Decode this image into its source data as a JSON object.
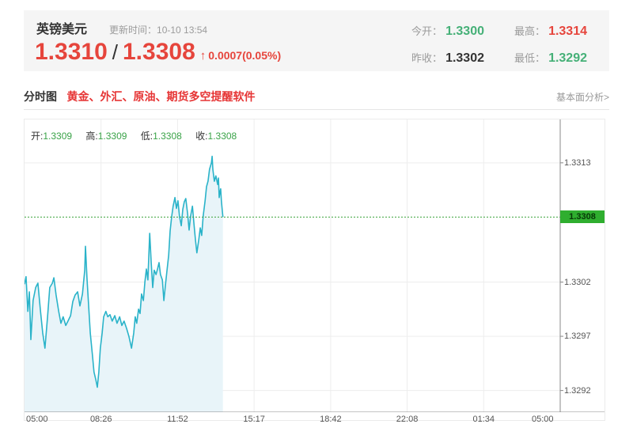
{
  "header": {
    "symbol_name": "英镑美元",
    "update_label": "更新时间：",
    "update_time": "10-10 13:54",
    "bid": "1.3310",
    "separator": "/",
    "ask": "1.3308",
    "arrow": "↑",
    "change": "0.0007(0.05%)",
    "stats": [
      {
        "label": "今开：",
        "value": "1.3300",
        "color": "#45b077"
      },
      {
        "label": "最高：",
        "value": "1.3314",
        "color": "#e6453c"
      },
      {
        "label": "昨收：",
        "value": "1.3302",
        "color": "#333333"
      },
      {
        "label": "最低：",
        "value": "1.3292",
        "color": "#45b077"
      }
    ]
  },
  "section": {
    "title": "分时图",
    "promo": "黄金、外汇、原油、期货多空提醒软件",
    "right_link": "基本面分析>"
  },
  "chart_data": {
    "type": "area",
    "title": "英镑美元分时图",
    "legend": [
      {
        "label": "开:",
        "value": "1.3309"
      },
      {
        "label": "高:",
        "value": "1.3309"
      },
      {
        "label": "低:",
        "value": "1.3308"
      },
      {
        "label": "收:",
        "value": "1.3308"
      }
    ],
    "x_ticks": [
      "05:00",
      "08:26",
      "11:52",
      "15:17",
      "18:42",
      "22:08",
      "01:34",
      "05:00"
    ],
    "x_total_minutes": 1442,
    "y_ticks": [
      1.3313,
      1.3302,
      1.3297,
      1.3292
    ],
    "ylim": [
      1.329,
      1.3317
    ],
    "grid": true,
    "legend_position": "top-left",
    "current_price": 1.3308,
    "current_price_label": "1.3308",
    "line_color": "#2ab3c9",
    "fill_color": "#e8f4f9",
    "current_line_color": "#3aa33a",
    "tag_bg": "#2fae2f",
    "axis_color": "#8a8a8a",
    "grid_color": "#ededed",
    "series": [
      [
        0,
        1.33018
      ],
      [
        4,
        1.33025
      ],
      [
        9,
        1.32993
      ],
      [
        13,
        1.33011
      ],
      [
        17,
        1.32967
      ],
      [
        23,
        1.33003
      ],
      [
        30,
        1.33015
      ],
      [
        36,
        1.33019
      ],
      [
        43,
        1.32993
      ],
      [
        49,
        1.32973
      ],
      [
        55,
        1.32959
      ],
      [
        62,
        1.32988
      ],
      [
        68,
        1.33015
      ],
      [
        75,
        1.33019
      ],
      [
        79,
        1.33024
      ],
      [
        85,
        1.33008
      ],
      [
        92,
        1.32993
      ],
      [
        98,
        1.32982
      ],
      [
        104,
        1.32988
      ],
      [
        111,
        1.3298
      ],
      [
        117,
        1.32984
      ],
      [
        124,
        1.32989
      ],
      [
        130,
        1.33002
      ],
      [
        136,
        1.33008
      ],
      [
        143,
        1.33011
      ],
      [
        149,
        1.32998
      ],
      [
        156,
        1.33009
      ],
      [
        162,
        1.33031
      ],
      [
        164,
        1.33053
      ],
      [
        168,
        1.33024
      ],
      [
        173,
        1.32996
      ],
      [
        177,
        1.32973
      ],
      [
        183,
        1.32952
      ],
      [
        187,
        1.32937
      ],
      [
        192,
        1.3293
      ],
      [
        196,
        1.32923
      ],
      [
        200,
        1.32937
      ],
      [
        204,
        1.32959
      ],
      [
        209,
        1.32973
      ],
      [
        213,
        1.32988
      ],
      [
        219,
        1.32993
      ],
      [
        224,
        1.32988
      ],
      [
        230,
        1.3299
      ],
      [
        236,
        1.32984
      ],
      [
        243,
        1.32989
      ],
      [
        249,
        1.32982
      ],
      [
        256,
        1.32988
      ],
      [
        262,
        1.3298
      ],
      [
        268,
        1.32984
      ],
      [
        275,
        1.32977
      ],
      [
        281,
        1.3297
      ],
      [
        288,
        1.32959
      ],
      [
        294,
        1.32973
      ],
      [
        298,
        1.32988
      ],
      [
        302,
        1.32982
      ],
      [
        307,
        1.32995
      ],
      [
        311,
        1.32991
      ],
      [
        315,
        1.33009
      ],
      [
        320,
        1.33003
      ],
      [
        324,
        1.3302
      ],
      [
        328,
        1.33032
      ],
      [
        332,
        1.33022
      ],
      [
        337,
        1.33065
      ],
      [
        341,
        1.33038
      ],
      [
        345,
        1.33015
      ],
      [
        349,
        1.33031
      ],
      [
        354,
        1.33027
      ],
      [
        358,
        1.33032
      ],
      [
        362,
        1.33038
      ],
      [
        366,
        1.33027
      ],
      [
        371,
        1.33022
      ],
      [
        375,
        1.33003
      ],
      [
        379,
        1.33016
      ],
      [
        383,
        1.33029
      ],
      [
        388,
        1.33045
      ],
      [
        392,
        1.33067
      ],
      [
        396,
        1.3308
      ],
      [
        400,
        1.3309
      ],
      [
        405,
        1.33098
      ],
      [
        409,
        1.33088
      ],
      [
        413,
        1.33095
      ],
      [
        417,
        1.33081
      ],
      [
        422,
        1.33072
      ],
      [
        426,
        1.33087
      ],
      [
        430,
        1.33094
      ],
      [
        434,
        1.33097
      ],
      [
        439,
        1.33083
      ],
      [
        443,
        1.33068
      ],
      [
        447,
        1.33081
      ],
      [
        452,
        1.3309
      ],
      [
        456,
        1.33074
      ],
      [
        460,
        1.33059
      ],
      [
        464,
        1.33047
      ],
      [
        469,
        1.33059
      ],
      [
        473,
        1.3307
      ],
      [
        477,
        1.33063
      ],
      [
        481,
        1.33081
      ],
      [
        486,
        1.33095
      ],
      [
        490,
        1.33108
      ],
      [
        494,
        1.33113
      ],
      [
        498,
        1.33124
      ],
      [
        503,
        1.3313
      ],
      [
        505,
        1.33136
      ],
      [
        507,
        1.33124
      ],
      [
        511,
        1.33113
      ],
      [
        515,
        1.33118
      ],
      [
        520,
        1.3311
      ],
      [
        522,
        1.33116
      ],
      [
        524,
        1.33098
      ],
      [
        526,
        1.33103
      ],
      [
        528,
        1.33106
      ],
      [
        530,
        1.33095
      ],
      [
        532,
        1.33087
      ],
      [
        534,
        1.3308
      ]
    ]
  }
}
